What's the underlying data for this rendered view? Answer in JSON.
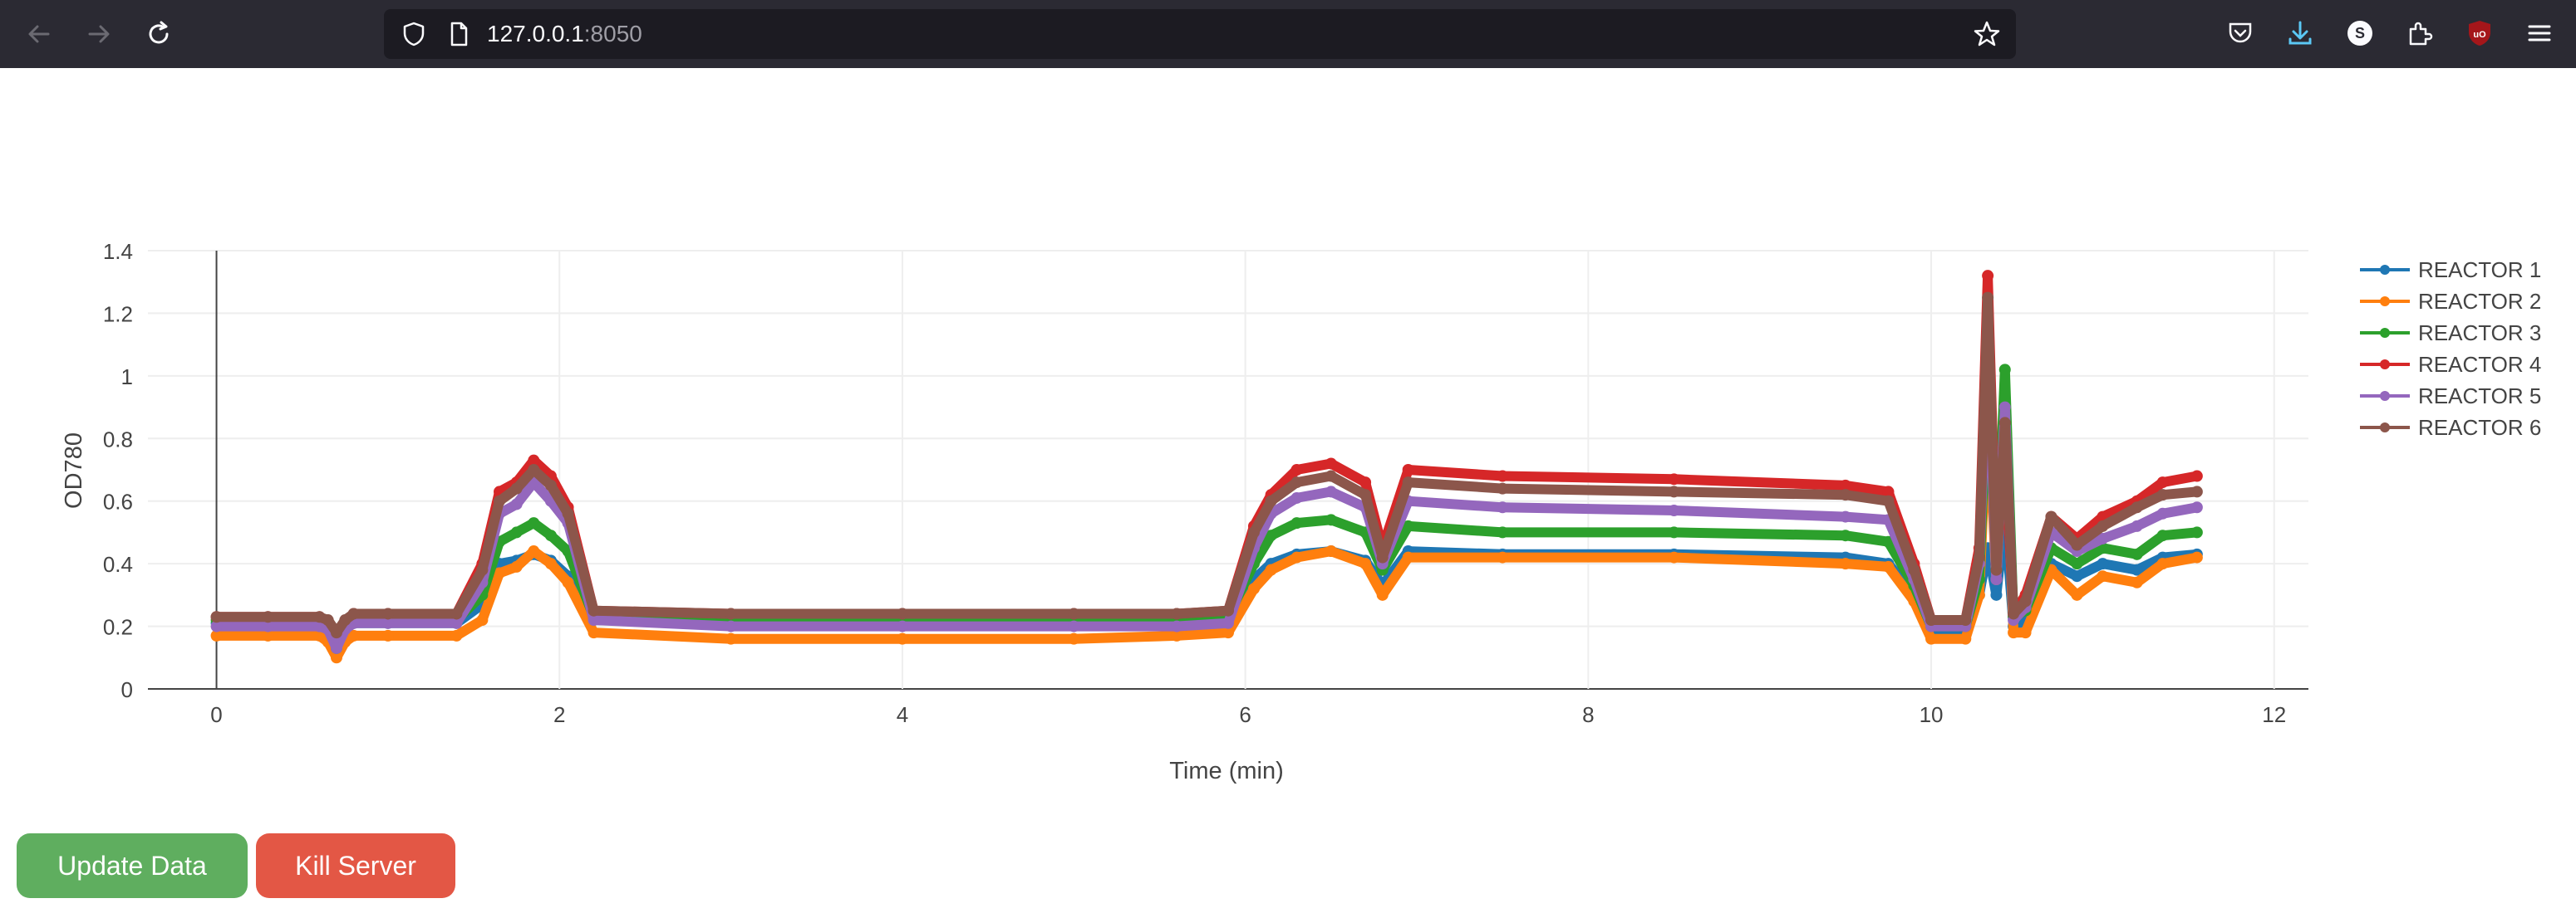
{
  "browser": {
    "url_host": "127.0.0.1",
    "url_port": ":8050"
  },
  "buttons": {
    "update_label": "Update Data",
    "kill_label": "Kill Server"
  },
  "colors": {
    "update_button": "#5fae5f",
    "kill_button": "#e35745"
  },
  "chart_data": {
    "type": "line",
    "title": "",
    "xlabel": "Time (min)",
    "ylabel": "OD780",
    "xlim": [
      -0.4,
      12.2
    ],
    "ylim": [
      0,
      1.4
    ],
    "x_ticks": [
      0,
      2,
      4,
      6,
      8,
      10,
      12
    ],
    "x_tick_labels": [
      "0",
      "2",
      "4",
      "6",
      "8",
      "10",
      "12"
    ],
    "y_ticks": [
      0,
      0.2,
      0.4,
      0.6,
      0.8,
      1,
      1.2,
      1.4
    ],
    "y_tick_labels": [
      "0",
      "0.2",
      "0.4",
      "0.6",
      "0.8",
      "1",
      "1.2",
      "1.4"
    ],
    "grid": true,
    "legend_position": "top-right",
    "x": [
      0,
      0.3,
      0.6,
      0.65,
      0.7,
      0.75,
      0.8,
      1.0,
      1.4,
      1.55,
      1.65,
      1.75,
      1.85,
      1.95,
      2.05,
      2.2,
      3.0,
      4.0,
      5.0,
      5.6,
      5.9,
      6.05,
      6.15,
      6.3,
      6.5,
      6.7,
      6.8,
      6.95,
      7.5,
      8.5,
      9.5,
      9.75,
      9.9,
      10.0,
      10.2,
      10.28,
      10.33,
      10.38,
      10.43,
      10.48,
      10.55,
      10.7,
      10.85,
      11.0,
      11.2,
      11.35,
      11.55
    ],
    "series": [
      {
        "name": "REACTOR 1",
        "color": "#1f77b4",
        "values": [
          0.21,
          0.21,
          0.21,
          0.19,
          0.12,
          0.19,
          0.21,
          0.21,
          0.21,
          0.27,
          0.4,
          0.41,
          0.43,
          0.41,
          0.36,
          0.22,
          0.21,
          0.21,
          0.21,
          0.21,
          0.22,
          0.35,
          0.4,
          0.43,
          0.44,
          0.41,
          0.33,
          0.44,
          0.43,
          0.43,
          0.42,
          0.4,
          0.3,
          0.18,
          0.18,
          0.3,
          0.45,
          0.3,
          0.55,
          0.2,
          0.22,
          0.4,
          0.36,
          0.4,
          0.38,
          0.42,
          0.43
        ]
      },
      {
        "name": "REACTOR 2",
        "color": "#ff7f0e",
        "values": [
          0.17,
          0.17,
          0.17,
          0.15,
          0.1,
          0.15,
          0.17,
          0.17,
          0.17,
          0.22,
          0.37,
          0.39,
          0.44,
          0.4,
          0.34,
          0.18,
          0.16,
          0.16,
          0.16,
          0.17,
          0.18,
          0.32,
          0.38,
          0.42,
          0.44,
          0.4,
          0.3,
          0.42,
          0.42,
          0.42,
          0.4,
          0.39,
          0.28,
          0.16,
          0.16,
          0.3,
          0.9,
          0.35,
          0.9,
          0.18,
          0.18,
          0.38,
          0.3,
          0.36,
          0.34,
          0.4,
          0.42
        ]
      },
      {
        "name": "REACTOR 3",
        "color": "#2ca02c",
        "values": [
          0.22,
          0.22,
          0.22,
          0.2,
          0.13,
          0.2,
          0.22,
          0.22,
          0.22,
          0.3,
          0.47,
          0.5,
          0.53,
          0.49,
          0.44,
          0.23,
          0.22,
          0.22,
          0.22,
          0.22,
          0.23,
          0.4,
          0.49,
          0.53,
          0.54,
          0.5,
          0.38,
          0.52,
          0.5,
          0.5,
          0.49,
          0.47,
          0.33,
          0.2,
          0.2,
          0.35,
          1.0,
          0.38,
          1.02,
          0.23,
          0.25,
          0.45,
          0.4,
          0.45,
          0.43,
          0.49,
          0.5
        ]
      },
      {
        "name": "REACTOR 4",
        "color": "#d62728",
        "values": [
          0.23,
          0.23,
          0.23,
          0.21,
          0.15,
          0.21,
          0.24,
          0.24,
          0.24,
          0.4,
          0.63,
          0.66,
          0.73,
          0.68,
          0.58,
          0.25,
          0.24,
          0.24,
          0.24,
          0.24,
          0.25,
          0.52,
          0.62,
          0.7,
          0.72,
          0.66,
          0.45,
          0.7,
          0.68,
          0.67,
          0.65,
          0.63,
          0.4,
          0.22,
          0.22,
          0.45,
          1.32,
          0.4,
          0.75,
          0.24,
          0.3,
          0.55,
          0.48,
          0.55,
          0.6,
          0.66,
          0.68
        ]
      },
      {
        "name": "REACTOR 5",
        "color": "#9467bd",
        "values": [
          0.2,
          0.2,
          0.2,
          0.19,
          0.13,
          0.19,
          0.21,
          0.21,
          0.21,
          0.34,
          0.56,
          0.59,
          0.66,
          0.6,
          0.53,
          0.22,
          0.2,
          0.2,
          0.2,
          0.2,
          0.21,
          0.45,
          0.56,
          0.61,
          0.63,
          0.58,
          0.4,
          0.6,
          0.58,
          0.57,
          0.55,
          0.54,
          0.35,
          0.2,
          0.2,
          0.4,
          1.1,
          0.35,
          0.9,
          0.22,
          0.26,
          0.5,
          0.44,
          0.48,
          0.52,
          0.56,
          0.58
        ]
      },
      {
        "name": "REACTOR 6",
        "color": "#8c564b",
        "values": [
          0.23,
          0.23,
          0.23,
          0.22,
          0.18,
          0.22,
          0.24,
          0.24,
          0.24,
          0.38,
          0.6,
          0.64,
          0.7,
          0.65,
          0.56,
          0.25,
          0.24,
          0.24,
          0.24,
          0.24,
          0.25,
          0.5,
          0.6,
          0.66,
          0.68,
          0.62,
          0.42,
          0.66,
          0.64,
          0.63,
          0.62,
          0.6,
          0.38,
          0.22,
          0.22,
          0.42,
          1.25,
          0.38,
          0.85,
          0.24,
          0.28,
          0.55,
          0.46,
          0.52,
          0.58,
          0.62,
          0.63
        ]
      }
    ]
  }
}
